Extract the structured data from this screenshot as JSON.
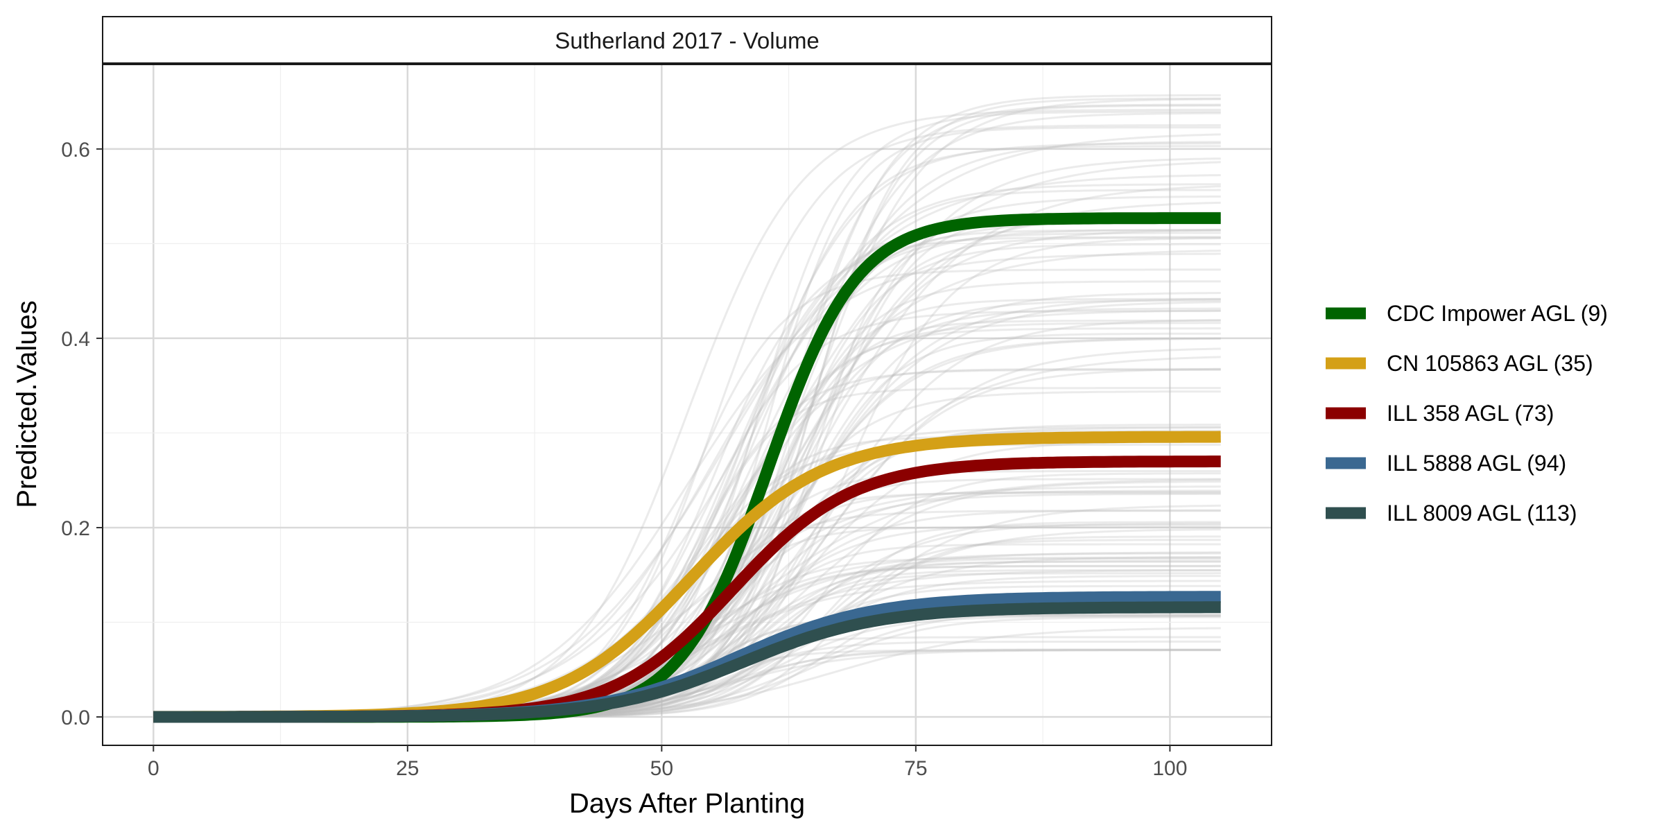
{
  "chart_data": {
    "type": "line",
    "title": "Sutherland 2017 - Volume",
    "xlabel": "Days After Planting",
    "ylabel": "Predicted.Values",
    "xlim": [
      -5,
      110
    ],
    "ylim": [
      -0.03,
      0.69
    ],
    "x_ticks": [
      0,
      25,
      50,
      75,
      100
    ],
    "x_tick_labels": [
      "0",
      "25",
      "50",
      "75",
      "100"
    ],
    "y_ticks": [
      0.0,
      0.2,
      0.4,
      0.6
    ],
    "y_tick_labels": [
      "0.0",
      "0.2",
      "0.4",
      "0.6"
    ],
    "grid": true,
    "legend_position": "right",
    "model": "logistic growth: y = asymptote / (1 + exp(-rate * (x - midpoint)))",
    "x_range": [
      0,
      105
    ],
    "series": [
      {
        "name": "CDC Impower AGL (9)",
        "color": "#006400",
        "asymptote": 0.527,
        "midpoint": 60.5,
        "rate": 0.23
      },
      {
        "name": "CN 105863 AGL (35)",
        "color": "#D4A017",
        "asymptote": 0.296,
        "midpoint": 53.0,
        "rate": 0.155
      },
      {
        "name": "ILL 358 AGL (73)",
        "color": "#8B0000",
        "asymptote": 0.27,
        "midpoint": 57.0,
        "rate": 0.17
      },
      {
        "name": "ILL 5888 AGL (94)",
        "color": "#3A6891",
        "asymptote": 0.127,
        "midpoint": 57.5,
        "rate": 0.15
      },
      {
        "name": "ILL 8009 AGL (113)",
        "color": "#2F4F4F",
        "asymptote": 0.116,
        "midpoint": 58.0,
        "rate": 0.15
      }
    ],
    "background_series": {
      "color": "#bebebe",
      "count": 120,
      "asymptote_range": [
        0.07,
        0.66
      ],
      "midpoint_range": [
        52,
        68
      ],
      "rate_range": [
        0.12,
        0.26
      ]
    }
  }
}
